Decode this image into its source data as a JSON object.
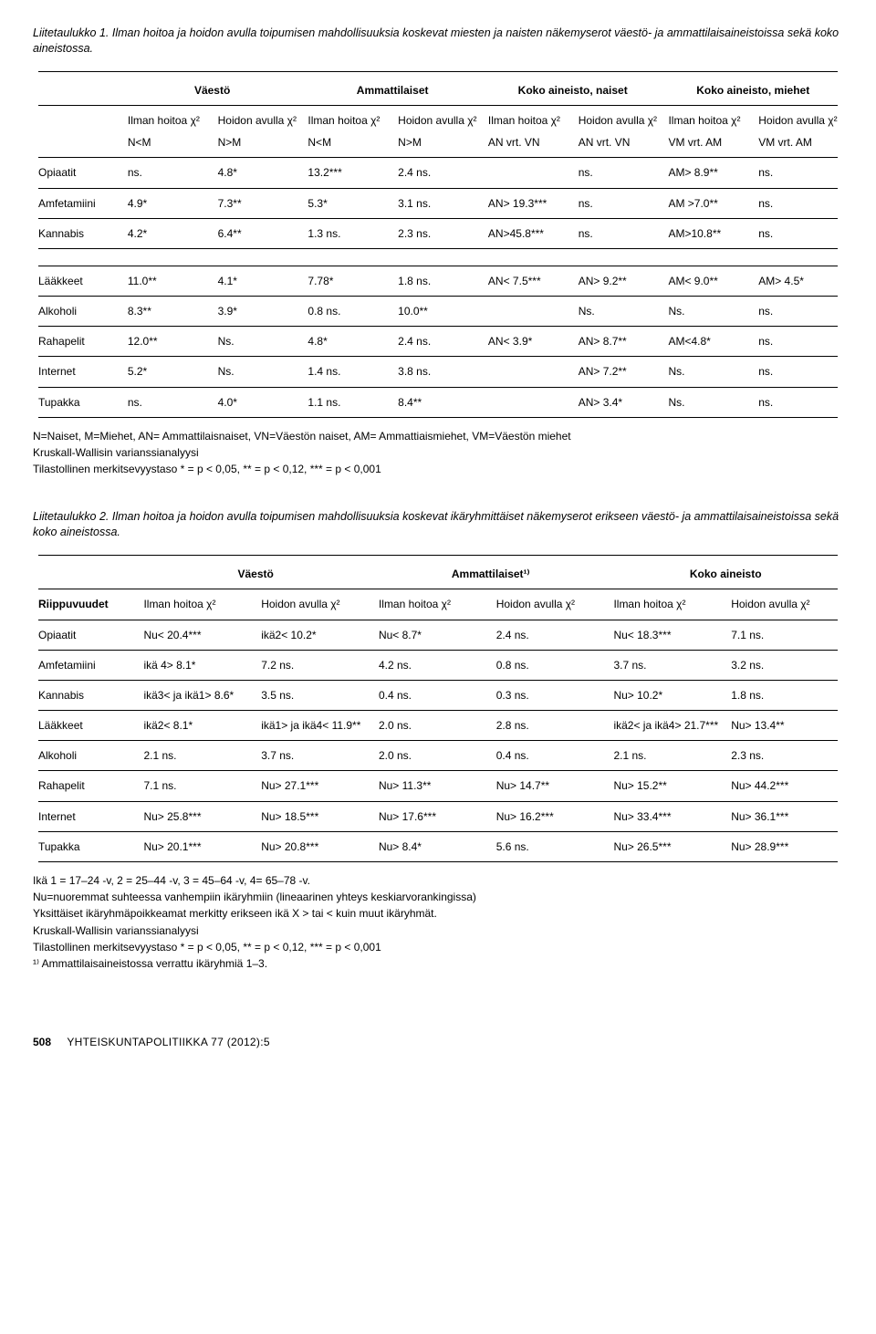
{
  "table1": {
    "caption": "Liitetaulukko 1. Ilman hoitoa ja hoidon avulla toipumisen mahdollisuuksia koskevat miesten ja naisten näkemyserot väestö- ja ammattilaisaineistoissa sekä koko aineistossa.",
    "groups": [
      "Väestö",
      "Ammattilaiset",
      "Koko aineisto, naiset",
      "Koko aineisto, miehet"
    ],
    "sub": {
      "ilman": "Ilman hoitoa χ²",
      "hoidon": "Hoidon avulla χ²"
    },
    "subsub": [
      "N<M",
      "N>M",
      "N<M",
      "N>M",
      "AN vrt. VN",
      "AN vrt. VN",
      "VM vrt. AM",
      "VM vrt. AM"
    ],
    "rowsA": [
      {
        "label": "Opiaatit",
        "c": [
          "ns.",
          "4.8*",
          "13.2***",
          "2.4 ns.",
          "",
          "ns.",
          "AM> 8.9**",
          "ns."
        ]
      },
      {
        "label": "Amfetamiini",
        "c": [
          "4.9*",
          "7.3**",
          "5.3*",
          "3.1 ns.",
          "AN> 19.3***",
          "ns.",
          "AM >7.0**",
          "ns."
        ]
      },
      {
        "label": "Kannabis",
        "c": [
          "4.2*",
          "6.4**",
          "1.3 ns.",
          "2.3 ns.",
          "AN>45.8***",
          "ns.",
          "AM>10.8**",
          "ns."
        ]
      }
    ],
    "rowsB": [
      {
        "label": "Lääkkeet",
        "c": [
          "11.0**",
          "4.1*",
          "7.78*",
          "1.8 ns.",
          "AN< 7.5***",
          "AN> 9.2**",
          "AM< 9.0**",
          "AM> 4.5*"
        ]
      },
      {
        "label": "Alkoholi",
        "c": [
          "8.3**",
          "3.9*",
          "0.8 ns.",
          "10.0**",
          "",
          "Ns.",
          "Ns.",
          "ns."
        ]
      },
      {
        "label": "Rahapelit",
        "c": [
          "12.0**",
          "Ns.",
          "4.8*",
          "2.4 ns.",
          "AN< 3.9*",
          "AN> 8.7**",
          "AM<4.8*",
          "ns."
        ]
      },
      {
        "label": "Internet",
        "c": [
          "5.2*",
          "Ns.",
          "1.4 ns.",
          "3.8 ns.",
          "",
          "AN> 7.2**",
          "Ns.",
          "ns."
        ]
      },
      {
        "label": "Tupakka",
        "c": [
          "ns.",
          "4.0*",
          "1.1 ns.",
          "8.4**",
          "",
          "AN> 3.4*",
          "Ns.",
          "ns."
        ]
      }
    ],
    "notes": [
      "N=Naiset, M=Miehet, AN= Ammattilaisnaiset, VN=Väestön naiset, AM= Ammattiaismiehet, VM=Väestön miehet",
      "Kruskall-Wallisin varianssianalyysi",
      "Tilastollinen merkitsevyystaso * = p < 0,05, ** = p < 0,12, *** = p < 0,001"
    ]
  },
  "table2": {
    "caption": "Liitetaulukko 2. Ilman hoitoa ja hoidon avulla toipumisen mahdollisuuksia koskevat ikäryhmittäiset näkemyserot erikseen väestö- ja ammattilaisaineistoissa sekä koko aineistossa.",
    "groups": [
      "Väestö",
      "Ammattilaiset¹⁾",
      "Koko aineisto"
    ],
    "rowhead": "Riippuvuudet",
    "sub": {
      "ilman": "Ilman hoitoa χ²",
      "hoidon": "Hoidon avulla χ²"
    },
    "rows": [
      {
        "label": "Opiaatit",
        "c": [
          "Nu< 20.4***",
          "ikä2< 10.2*",
          "Nu< 8.7*",
          "2.4 ns.",
          "Nu< 18.3***",
          "7.1 ns."
        ]
      },
      {
        "label": "Amfetamiini",
        "c": [
          "ikä 4> 8.1*",
          "7.2  ns.",
          "4.2 ns.",
          "0.8 ns.",
          "3.7 ns.",
          "3.2 ns."
        ]
      },
      {
        "label": "Kannabis",
        "c": [
          "ikä3< ja ikä1> 8.6*",
          "3.5 ns.",
          "0.4 ns.",
          "0.3 ns.",
          "Nu> 10.2*",
          "1.8 ns."
        ]
      },
      {
        "label": "Lääkkeet",
        "c": [
          "ikä2< 8.1*",
          "ikä1> ja ikä4< 11.9**",
          "2.0 ns.",
          "2.8 ns.",
          "ikä2< ja ikä4> 21.7***",
          "Nu> 13.4**"
        ]
      },
      {
        "label": "Alkoholi",
        "c": [
          "2.1 ns.",
          "3.7 ns.",
          "2.0 ns.",
          "0.4 ns.",
          "2.1 ns.",
          "2.3 ns."
        ]
      },
      {
        "label": "Rahapelit",
        "c": [
          "7.1 ns.",
          "Nu> 27.1***",
          "Nu> 11.3**",
          "Nu> 14.7**",
          "Nu> 15.2**",
          "Nu> 44.2***"
        ]
      },
      {
        "label": "Internet",
        "c": [
          "Nu> 25.8***",
          "Nu> 18.5***",
          "Nu> 17.6***",
          "Nu> 16.2***",
          "Nu> 33.4***",
          "Nu> 36.1***"
        ]
      },
      {
        "label": "Tupakka",
        "c": [
          "Nu> 20.1***",
          "Nu> 20.8***",
          "Nu> 8.4*",
          "5.6 ns.",
          "Nu> 26.5***",
          "Nu> 28.9***"
        ]
      }
    ],
    "notes": [
      "Ikä 1 = 17–24 -v, 2 = 25–44 -v, 3 = 45–64 -v, 4= 65–78 -v.",
      "Nu=nuoremmat suhteessa vanhempiin ikäryhmiin (lineaarinen yhteys keskiarvorankingissa)",
      "Yksittäiset ikäryhmäpoikkeamat merkitty erikseen ikä X > tai < kuin muut ikäryhmät.",
      "Kruskall-Wallisin varianssianalyysi",
      "Tilastollinen merkitsevyystaso * = p < 0,05, ** = p < 0,12, *** = p < 0,001",
      "¹⁾ Ammattilaisaineistossa verrattu ikäryhmiä 1–3."
    ]
  },
  "footer": {
    "page": "508",
    "journal": "YHTEISKUNTAPOLITIIKKA 77 (2012):5"
  }
}
